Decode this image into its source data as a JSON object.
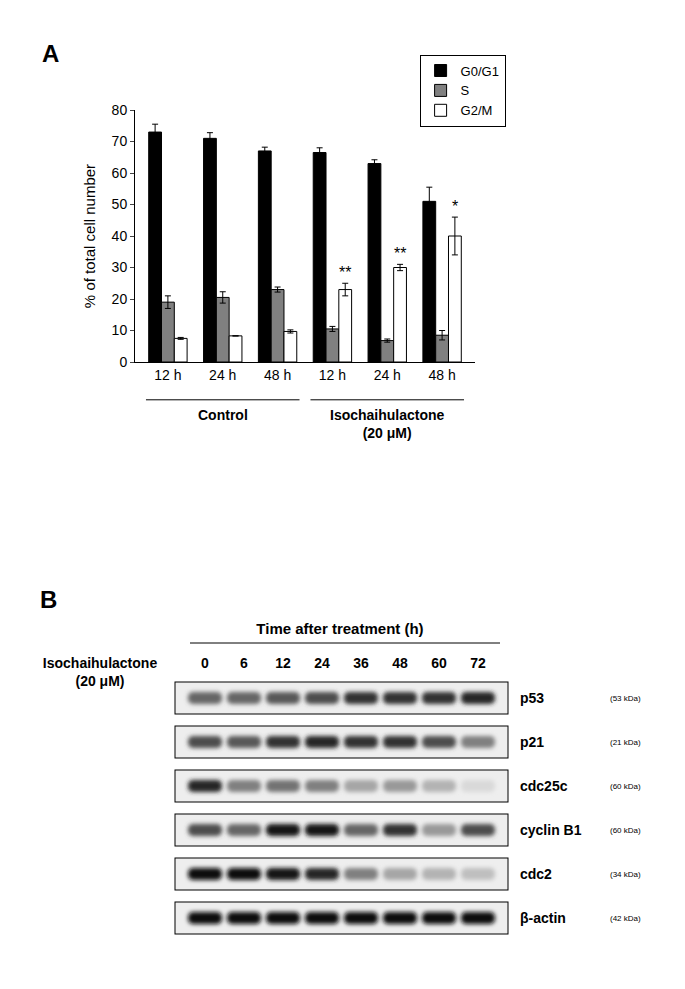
{
  "chart_data": {
    "type": "bar",
    "panel": "A",
    "categories": [
      "12 h",
      "24 h",
      "48 h",
      "12 h",
      "24 h",
      "48 h"
    ],
    "groups": [
      {
        "label": [
          "Control"
        ],
        "from": 0,
        "to": 2
      },
      {
        "label": [
          "Isochaihulactone",
          "(20 μM)"
        ],
        "from": 3,
        "to": 5
      }
    ],
    "y_label": "% of total cell number",
    "series": [
      {
        "name": "G0/G1",
        "color": "#000000",
        "values": [
          73,
          71,
          67,
          66.5,
          63,
          51
        ],
        "errors": [
          2.5,
          1.8,
          1.2,
          1.5,
          1.2,
          4.5
        ]
      },
      {
        "name": "S",
        "color": "#808080",
        "values": [
          19,
          20.5,
          23,
          10.5,
          6.8,
          8.5
        ],
        "errors": [
          2,
          1.8,
          0.8,
          0.8,
          0.5,
          1.5
        ]
      },
      {
        "name": "G2/M",
        "color": "#ffffff",
        "values": [
          7.5,
          8.3,
          9.7,
          23,
          30,
          40
        ],
        "errors": [
          0.3,
          0,
          0.5,
          2,
          1,
          6
        ]
      }
    ],
    "ylim": [
      0,
      80
    ],
    "yticks": [
      0,
      10,
      20,
      30,
      40,
      50,
      60,
      70,
      80
    ],
    "grid": false,
    "legend": "top right",
    "annotations": [
      {
        "text": "**",
        "x": 3,
        "series": "G2/M"
      },
      {
        "text": "**",
        "x": 4,
        "series": "G2/M"
      },
      {
        "text": "*",
        "x": 5,
        "series": "G2/M"
      }
    ]
  },
  "blot": {
    "panel": "B",
    "title": "Time after treatment (h)",
    "treatment": [
      "Isochaihulactone",
      "(20 μM)"
    ],
    "lanes": [
      0,
      6,
      12,
      24,
      36,
      48,
      60,
      72
    ],
    "rows": [
      {
        "label": "p53",
        "size": "(53 kDa)",
        "intensity": [
          0.6,
          0.6,
          0.65,
          0.7,
          0.8,
          0.8,
          0.8,
          0.85
        ]
      },
      {
        "label": "p21",
        "size": "(21 kDa)",
        "intensity": [
          0.7,
          0.65,
          0.8,
          0.85,
          0.8,
          0.8,
          0.7,
          0.5
        ]
      },
      {
        "label": "cdc25c",
        "size": "(60 kDa)",
        "intensity": [
          0.85,
          0.5,
          0.55,
          0.5,
          0.35,
          0.4,
          0.3,
          0.15
        ]
      },
      {
        "label": "cyclin B1",
        "size": "(60 kDa)",
        "intensity": [
          0.7,
          0.6,
          0.9,
          0.9,
          0.6,
          0.8,
          0.4,
          0.7
        ]
      },
      {
        "label": "cdc2",
        "size": "(34 kDa)",
        "intensity": [
          0.95,
          0.95,
          0.9,
          0.85,
          0.5,
          0.35,
          0.3,
          0.25
        ]
      },
      {
        "label": "β-actin",
        "size": "(42 kDa)",
        "intensity": [
          0.95,
          0.95,
          0.95,
          0.95,
          0.95,
          0.95,
          0.95,
          0.95
        ]
      }
    ]
  }
}
